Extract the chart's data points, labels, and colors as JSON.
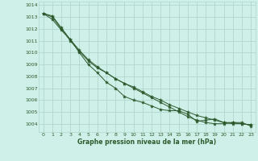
{
  "background_color": "#cff0e8",
  "grid_color": "#b0d8cc",
  "line_color": "#2d5a2d",
  "marker_color": "#2d5a2d",
  "title": "Graphe pression niveau de la mer (hPa)",
  "title_color": "#2d5a2d",
  "ylim": [
    1003.3,
    1014.3
  ],
  "xlim": [
    -0.5,
    23.5
  ],
  "yticks": [
    1004,
    1005,
    1006,
    1007,
    1008,
    1009,
    1010,
    1011,
    1012,
    1013,
    1014
  ],
  "xticks": [
    0,
    1,
    2,
    3,
    4,
    5,
    6,
    7,
    8,
    9,
    10,
    11,
    12,
    13,
    14,
    15,
    16,
    17,
    18,
    19,
    20,
    21,
    22,
    23
  ],
  "series": [
    [
      1013.3,
      1012.8,
      1011.9,
      1011.1,
      1010.0,
      1009.0,
      1008.3,
      1007.5,
      1007.0,
      1006.3,
      1006.0,
      1005.8,
      1005.5,
      1005.2,
      1005.1,
      1005.1,
      1004.8,
      1004.2,
      1004.3,
      1004.4,
      1004.1,
      1004.1,
      1004.1,
      1003.8
    ],
    [
      1013.3,
      1013.1,
      1012.1,
      1011.1,
      1010.2,
      1009.4,
      1008.8,
      1008.3,
      1007.8,
      1007.4,
      1007.1,
      1006.7,
      1006.3,
      1006.0,
      1005.6,
      1005.3,
      1005.0,
      1004.7,
      1004.5,
      1004.3,
      1004.1,
      1004.0,
      1004.0,
      1003.9
    ],
    [
      1013.3,
      1013.0,
      1012.0,
      1011.0,
      1010.1,
      1009.3,
      1008.7,
      1008.3,
      1007.8,
      1007.4,
      1007.0,
      1006.6,
      1006.2,
      1005.8,
      1005.4,
      1005.0,
      1004.6,
      1004.3,
      1004.1,
      1004.0,
      1004.0,
      1004.1,
      1004.0,
      1003.9
    ]
  ]
}
